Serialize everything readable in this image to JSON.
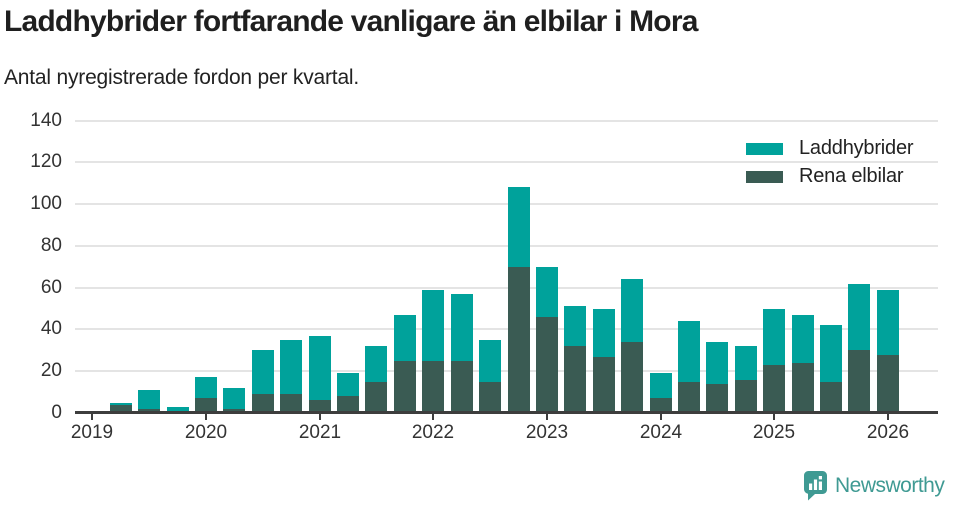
{
  "title": "Laddhybrider fortfarande vanligare än elbilar i Mora",
  "subtitle": "Antal nyregistrerade fordon per kvartal.",
  "colors": {
    "laddhybrider": "#00a29b",
    "rena_elbilar": "#3a5b53",
    "axis": "#3d3d3d",
    "gridline": "#e4e4e4",
    "text": "#333333",
    "brand": "#3f9a93"
  },
  "legend": [
    {
      "label": "Laddhybrider",
      "color": "#00a29b"
    },
    {
      "label": "Rena elbilar",
      "color": "#3a5b53"
    }
  ],
  "footer": {
    "brand": "Newsworthy",
    "logo_icon": "bar-chart-speech-bubble-icon"
  },
  "chart_data": {
    "type": "bar",
    "stacked": true,
    "grid": "horizontal",
    "legend_position": "top-right",
    "ylim": [
      0,
      140
    ],
    "yticks": [
      0,
      20,
      40,
      60,
      80,
      100,
      120,
      140
    ],
    "xticks": [
      "2019",
      "2020",
      "2021",
      "2022",
      "2023",
      "2024",
      "2025",
      "2026"
    ],
    "x": [
      "2019 Q1",
      "2019 Q2",
      "2019 Q3",
      "2019 Q4",
      "2020 Q1",
      "2020 Q2",
      "2020 Q3",
      "2020 Q4",
      "2021 Q1",
      "2021 Q2",
      "2021 Q3",
      "2021 Q4",
      "2022 Q1",
      "2022 Q2",
      "2022 Q3",
      "2022 Q4",
      "2023 Q1",
      "2023 Q2",
      "2023 Q3",
      "2023 Q4",
      "2024 Q1",
      "2024 Q2",
      "2024 Q3",
      "2024 Q4",
      "2025 Q1",
      "2025 Q2",
      "2025 Q3",
      "2025 Q4",
      "2026 Q1"
    ],
    "series": [
      {
        "name": "Laddhybrider",
        "color": "#00a29b",
        "stack_order": "top",
        "values": [
          0,
          1,
          9,
          2,
          10,
          10,
          21,
          26,
          31,
          11,
          17,
          22,
          34,
          32,
          20,
          38,
          24,
          19,
          23,
          30,
          12,
          29,
          20,
          16,
          27,
          23,
          27,
          32,
          31
        ]
      },
      {
        "name": "Rena elbilar",
        "color": "#3a5b53",
        "stack_order": "bottom",
        "values": [
          0,
          4,
          2,
          1,
          7,
          2,
          9,
          9,
          6,
          8,
          15,
          25,
          25,
          25,
          15,
          70,
          46,
          32,
          27,
          34,
          7,
          15,
          14,
          16,
          23,
          24,
          15,
          30,
          28
        ]
      }
    ],
    "totals": [
      0,
      5,
      11,
      3,
      17,
      12,
      30,
      35,
      37,
      19,
      32,
      47,
      59,
      57,
      35,
      108,
      70,
      51,
      50,
      64,
      19,
      44,
      34,
      32,
      50,
      47,
      42,
      62,
      59
    ]
  }
}
